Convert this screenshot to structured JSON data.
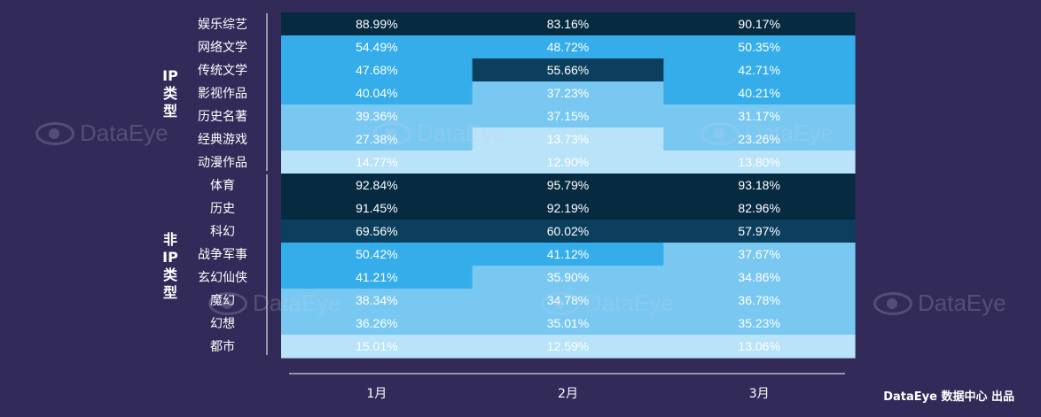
{
  "chart_data": {
    "type": "heatmap",
    "columns": [
      "1月",
      "2月",
      "3月"
    ],
    "groups": [
      {
        "label": "IP类型",
        "rows": [
          {
            "name": "娱乐综艺",
            "values": [
              88.99,
              83.16,
              90.17
            ]
          },
          {
            "name": "网络文学",
            "values": [
              54.49,
              48.72,
              50.35
            ]
          },
          {
            "name": "传统文学",
            "values": [
              47.68,
              55.66,
              42.71
            ]
          },
          {
            "name": "影视作品",
            "values": [
              40.04,
              37.23,
              40.21
            ]
          },
          {
            "name": "历史名著",
            "values": [
              39.36,
              37.15,
              31.17
            ]
          },
          {
            "name": "经典游戏",
            "values": [
              27.38,
              13.73,
              23.26
            ]
          },
          {
            "name": "动漫作品",
            "values": [
              14.77,
              12.9,
              13.8
            ]
          }
        ]
      },
      {
        "label": "非IP类型",
        "rows": [
          {
            "name": "体育",
            "values": [
              92.84,
              95.79,
              93.18
            ]
          },
          {
            "name": "历史",
            "values": [
              91.45,
              92.19,
              82.96
            ]
          },
          {
            "name": "科幻",
            "values": [
              69.56,
              60.02,
              57.97
            ]
          },
          {
            "name": "战争军事",
            "values": [
              50.42,
              41.12,
              37.67
            ]
          },
          {
            "name": "玄幻仙侠",
            "values": [
              41.21,
              35.9,
              34.86
            ]
          },
          {
            "name": "魔幻",
            "values": [
              38.34,
              34.78,
              36.78
            ]
          },
          {
            "name": "幻想",
            "values": [
              36.26,
              35.01,
              35.23
            ]
          },
          {
            "name": "都市",
            "values": [
              15.01,
              12.59,
              13.06
            ]
          }
        ]
      }
    ],
    "value_suffix": "%",
    "color_bins": [
      {
        "min": 80,
        "color": "#062a40"
      },
      {
        "min": 55,
        "color": "#0c3f5e"
      },
      {
        "min": 40,
        "color": "#35adea"
      },
      {
        "min": 20,
        "color": "#79c8f2"
      },
      {
        "min": 0,
        "color": "#b9e3f8"
      }
    ]
  },
  "watermark": {
    "text": "DataEye"
  },
  "footer": {
    "text": "DataEye 数据中心 出品"
  }
}
